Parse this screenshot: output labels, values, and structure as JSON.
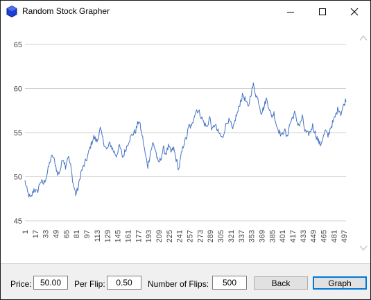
{
  "window": {
    "title": "Random Stock Grapher"
  },
  "icons": {
    "app": "blue-hexagon-icon",
    "minimize": "minimize-icon",
    "maximize": "maximize-icon",
    "close": "close-icon",
    "scroll_up": "chevron-up-icon",
    "scroll_down": "chevron-down-icon"
  },
  "controls": {
    "price_label": "Price:",
    "price_value": "50.00",
    "per_flip_label": "Per Flip:",
    "per_flip_value": "0.50",
    "flips_label": "Number of Flips:",
    "flips_value": "500",
    "back_label": "Back",
    "graph_label": "Graph"
  },
  "colors": {
    "line": "#4472c4",
    "grid": "#d0d0d0",
    "accent": "#0078d7",
    "panel": "#f0f0f0"
  },
  "chart_data": {
    "type": "line",
    "title": "",
    "xlabel": "",
    "ylabel": "",
    "ylim": [
      45,
      65
    ],
    "yticks": [
      45,
      50,
      55,
      60,
      65
    ],
    "x_range": [
      1,
      500
    ],
    "x_tick_step": 16,
    "grid": "horizontal",
    "keypoints": [
      [
        1,
        49.5
      ],
      [
        5,
        48.2
      ],
      [
        10,
        47.5
      ],
      [
        15,
        48.6
      ],
      [
        20,
        48.2
      ],
      [
        25,
        49.5
      ],
      [
        30,
        49.2
      ],
      [
        35,
        50.2
      ],
      [
        40,
        51.8
      ],
      [
        44,
        52.4
      ],
      [
        48,
        51.5
      ],
      [
        52,
        50.2
      ],
      [
        56,
        50.8
      ],
      [
        60,
        52.2
      ],
      [
        64,
        51.2
      ],
      [
        68,
        52.4
      ],
      [
        72,
        51.2
      ],
      [
        76,
        49.2
      ],
      [
        80,
        48.0
      ],
      [
        84,
        48.8
      ],
      [
        88,
        50.5
      ],
      [
        93,
        51.3
      ],
      [
        98,
        52.2
      ],
      [
        103,
        53.5
      ],
      [
        108,
        54.5
      ],
      [
        113,
        54.0
      ],
      [
        118,
        55.4
      ],
      [
        123,
        54.0
      ],
      [
        128,
        53.0
      ],
      [
        133,
        53.8
      ],
      [
        138,
        53.0
      ],
      [
        143,
        52.4
      ],
      [
        148,
        53.5
      ],
      [
        153,
        52.2
      ],
      [
        158,
        53.2
      ],
      [
        163,
        54.2
      ],
      [
        168,
        54.8
      ],
      [
        173,
        55.2
      ],
      [
        178,
        56.4
      ],
      [
        183,
        54.8
      ],
      [
        188,
        52.5
      ],
      [
        192,
        51.2
      ],
      [
        196,
        52.8
      ],
      [
        200,
        53.8
      ],
      [
        204,
        53.0
      ],
      [
        208,
        51.5
      ],
      [
        212,
        52.0
      ],
      [
        216,
        53.2
      ],
      [
        220,
        52.6
      ],
      [
        224,
        53.4
      ],
      [
        228,
        52.8
      ],
      [
        232,
        53.2
      ],
      [
        236,
        52.0
      ],
      [
        240,
        50.8
      ],
      [
        244,
        52.5
      ],
      [
        248,
        53.8
      ],
      [
        252,
        54.4
      ],
      [
        256,
        55.8
      ],
      [
        260,
        55.6
      ],
      [
        264,
        57.0
      ],
      [
        268,
        57.6
      ],
      [
        272,
        57.3
      ],
      [
        276,
        56.6
      ],
      [
        280,
        56.0
      ],
      [
        284,
        55.6
      ],
      [
        288,
        56.8
      ],
      [
        292,
        55.2
      ],
      [
        296,
        56.0
      ],
      [
        300,
        55.2
      ],
      [
        304,
        54.8
      ],
      [
        308,
        54.3
      ],
      [
        312,
        55.6
      ],
      [
        316,
        56.4
      ],
      [
        320,
        56.2
      ],
      [
        324,
        55.2
      ],
      [
        328,
        56.6
      ],
      [
        332,
        57.4
      ],
      [
        336,
        58.6
      ],
      [
        340,
        59.3
      ],
      [
        344,
        58.6
      ],
      [
        348,
        57.8
      ],
      [
        352,
        59.4
      ],
      [
        356,
        60.4
      ],
      [
        360,
        59.3
      ],
      [
        364,
        58.6
      ],
      [
        368,
        57.3
      ],
      [
        372,
        57.8
      ],
      [
        376,
        58.8
      ],
      [
        380,
        58.0
      ],
      [
        384,
        56.8
      ],
      [
        388,
        57.2
      ],
      [
        392,
        55.8
      ],
      [
        396,
        55.2
      ],
      [
        400,
        54.6
      ],
      [
        404,
        55.4
      ],
      [
        408,
        54.4
      ],
      [
        412,
        55.8
      ],
      [
        416,
        56.6
      ],
      [
        420,
        57.2
      ],
      [
        424,
        56.2
      ],
      [
        428,
        55.8
      ],
      [
        432,
        56.8
      ],
      [
        436,
        55.2
      ],
      [
        440,
        54.8
      ],
      [
        444,
        55.0
      ],
      [
        448,
        55.8
      ],
      [
        452,
        55.0
      ],
      [
        456,
        54.2
      ],
      [
        460,
        53.6
      ],
      [
        464,
        54.4
      ],
      [
        468,
        55.2
      ],
      [
        472,
        54.6
      ],
      [
        476,
        55.6
      ],
      [
        480,
        56.2
      ],
      [
        484,
        57.0
      ],
      [
        488,
        57.8
      ],
      [
        492,
        57.2
      ],
      [
        496,
        58.0
      ],
      [
        500,
        58.8
      ]
    ]
  }
}
